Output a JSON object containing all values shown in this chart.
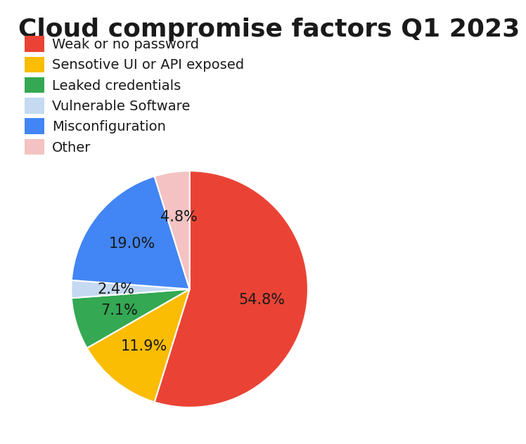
{
  "title": "Cloud compromise factors Q1 2023",
  "labels": [
    "Weak or no password",
    "Sensotive UI or API exposed",
    "Leaked credentials",
    "Vulnerable Software",
    "Misconfiguration",
    "Other"
  ],
  "values": [
    54.8,
    11.9,
    7.1,
    2.4,
    19.0,
    4.8
  ],
  "colors": [
    "#EA4335",
    "#FBBC04",
    "#34A853",
    "#C5D9F1",
    "#4285F4",
    "#F4C2C2"
  ],
  "pct_labels": [
    "54.8%",
    "11.9%",
    "7.1%",
    "2.4%",
    "19.0%",
    "4.8%"
  ],
  "title_fontsize": 26,
  "legend_fontsize": 14,
  "pct_fontsize": 15,
  "background_color": "#ffffff",
  "startangle": 90
}
